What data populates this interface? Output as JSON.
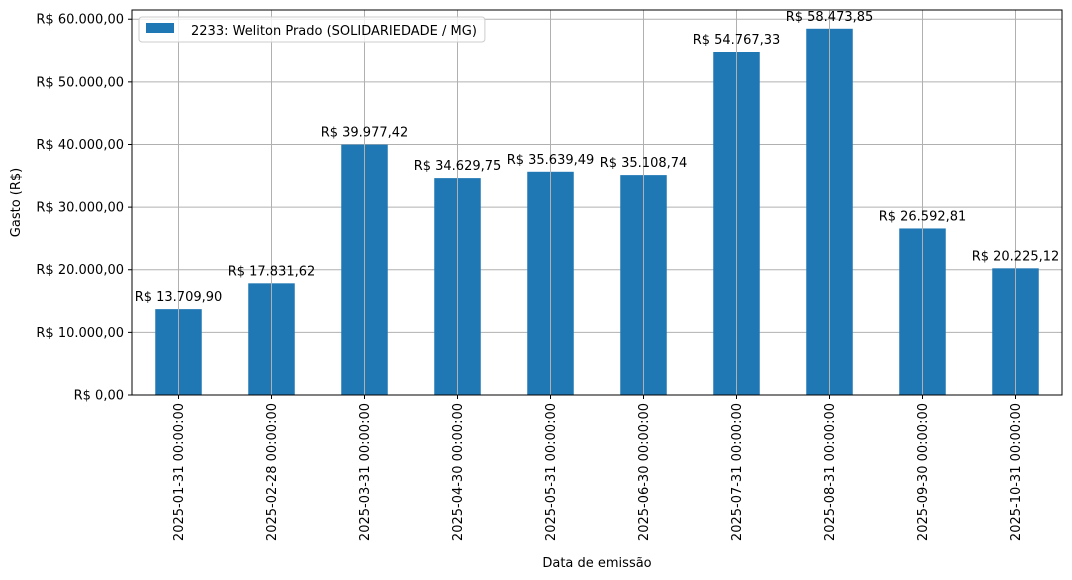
{
  "chart_data": {
    "type": "bar",
    "categories": [
      "2025-01-31 00:00:00",
      "2025-02-28 00:00:00",
      "2025-03-31 00:00:00",
      "2025-04-30 00:00:00",
      "2025-05-31 00:00:00",
      "2025-06-30 00:00:00",
      "2025-07-31 00:00:00",
      "2025-08-31 00:00:00",
      "2025-09-30 00:00:00",
      "2025-10-31 00:00:00"
    ],
    "series": [
      {
        "name": "2233: Weliton Prado (SOLIDARIEDADE / MG)",
        "values": [
          13709.9,
          17831.62,
          39977.42,
          34629.75,
          35639.49,
          35108.74,
          54767.33,
          58473.85,
          26592.81,
          20225.12
        ],
        "value_labels": [
          "R$ 13.709,90",
          "R$ 17.831,62",
          "R$ 39.977,42",
          "R$ 34.629,75",
          "R$ 35.639,49",
          "R$ 35.108,74",
          "R$ 54.767,33",
          "R$ 58.473,85",
          "R$ 26.592,81",
          "R$ 20.225,12"
        ],
        "color": "#1f77b4"
      }
    ],
    "xlabel": "Data de emissão",
    "ylabel": "Gasto (R$)",
    "ylim": [
      0,
      61473.85
    ],
    "yticks": [
      0,
      10000,
      20000,
      30000,
      40000,
      50000,
      60000
    ],
    "ytick_labels": [
      "R$ 0,00",
      "R$ 10.000,00",
      "R$ 20.000,00",
      "R$ 30.000,00",
      "R$ 40.000,00",
      "R$ 50.000,00",
      "R$ 60.000,00"
    ],
    "grid": true,
    "legend_position": "top-left"
  }
}
